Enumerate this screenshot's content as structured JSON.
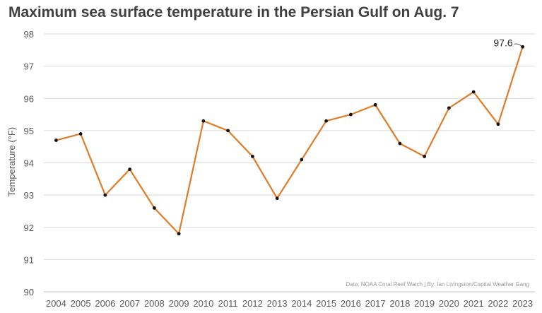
{
  "chart_data": {
    "type": "line",
    "title": "Maximum sea surface temperature in the Persian Gulf on Aug. 7",
    "xlabel": "",
    "ylabel": "Temperature (°F)",
    "categories": [
      "2004",
      "2005",
      "2006",
      "2007",
      "2008",
      "2009",
      "2010",
      "2011",
      "2012",
      "2013",
      "2014",
      "2015",
      "2016",
      "2017",
      "2018",
      "2019",
      "2020",
      "2021",
      "2022",
      "2023"
    ],
    "values": [
      94.7,
      94.9,
      93.0,
      93.8,
      92.6,
      91.8,
      95.3,
      95.0,
      94.2,
      92.9,
      94.1,
      95.3,
      95.5,
      95.8,
      94.6,
      94.2,
      95.7,
      96.2,
      95.2,
      97.6
    ],
    "ylim": [
      90,
      98
    ],
    "yticks": [
      90,
      91,
      92,
      93,
      94,
      95,
      96,
      97,
      98
    ],
    "grid": true,
    "legend": "none",
    "annotation": {
      "text": "97.6",
      "category": "2023"
    },
    "source": "Data: NOAA Coral Reef Watch | By: Ian Livingston/Capital Weather Gang",
    "colors": {
      "line": "#E07B28",
      "marker": "#111111",
      "grid": "#d9d9d9",
      "axis": "#bfbfbf"
    }
  }
}
